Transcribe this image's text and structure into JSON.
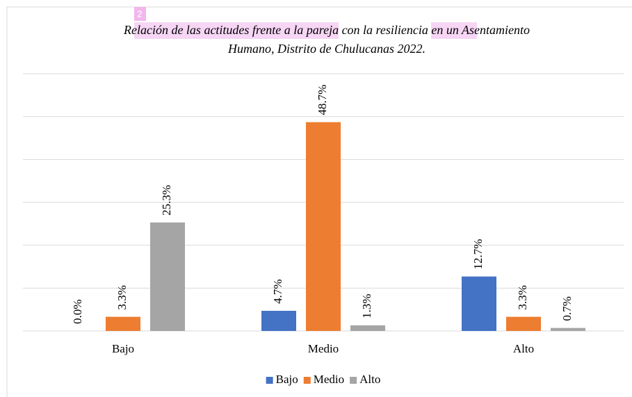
{
  "chart_data": {
    "type": "bar",
    "badge": "2",
    "title_lines": [
      "Relación de las actitudes frente a la pareja con la resiliencia en un Asentamiento",
      "Humano, Distrito de Chulucanas 2022."
    ],
    "categories": [
      "Bajo",
      "Medio",
      "Alto"
    ],
    "series": [
      {
        "name": "Bajo",
        "color": "#4472c4",
        "values": [
          0.0,
          4.7,
          12.7
        ],
        "value_labels": [
          "0.0%",
          "4.7%",
          "12.7%"
        ]
      },
      {
        "name": "Medio",
        "color": "#ed7d31",
        "values": [
          3.3,
          48.7,
          3.3
        ],
        "value_labels": [
          "3.3%",
          "48.7%",
          "3.3%"
        ]
      },
      {
        "name": "Alto",
        "color": "#a5a5a5",
        "values": [
          25.3,
          1.3,
          0.7
        ],
        "value_labels": [
          "25.3%",
          "1.3%",
          "0.7%"
        ]
      }
    ],
    "ylim": [
      0,
      60
    ],
    "yticks": [
      0,
      10,
      20,
      30,
      40,
      50,
      60
    ],
    "grid": true,
    "legend": "bottom"
  }
}
